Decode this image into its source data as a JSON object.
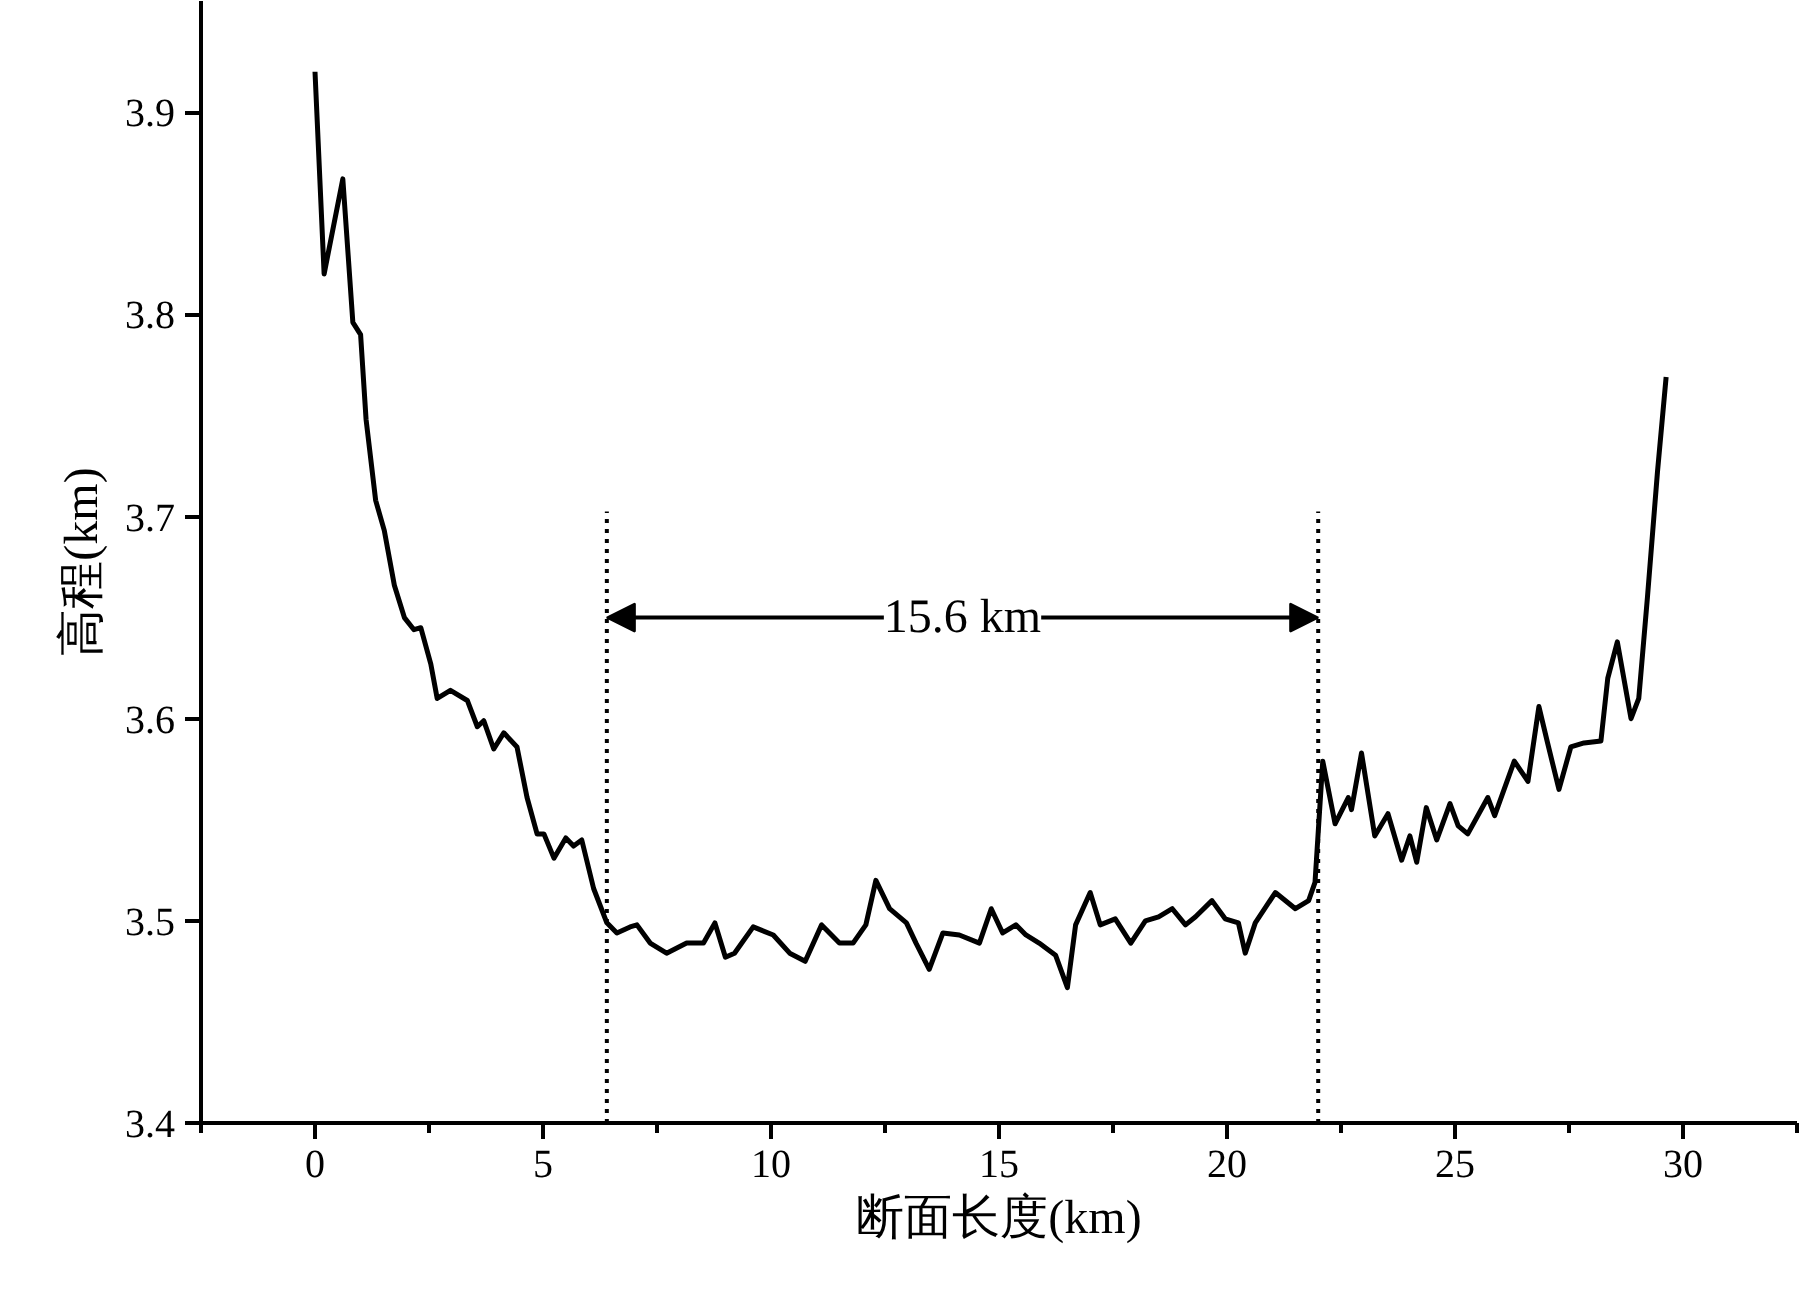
{
  "chart_data": {
    "type": "line",
    "xlabel": "断面长度(km)",
    "ylabel": "高程(km)",
    "x": [
      0,
      0.2,
      0.61,
      0.83,
      1.0,
      1.12,
      1.33,
      1.52,
      1.74,
      1.96,
      2.17,
      2.32,
      2.54,
      2.68,
      2.97,
      3.34,
      3.56,
      3.7,
      3.92,
      4.14,
      4.43,
      4.65,
      4.87,
      5.02,
      5.24,
      5.5,
      5.67,
      5.85,
      6.11,
      6.4,
      6.62,
      6.91,
      7.06,
      7.35,
      7.71,
      8.15,
      8.52,
      8.77,
      9.0,
      9.2,
      9.61,
      10.05,
      10.41,
      10.75,
      11.11,
      11.5,
      11.8,
      12.08,
      12.3,
      12.6,
      12.97,
      13.18,
      13.47,
      13.77,
      14.13,
      14.57,
      14.83,
      15.08,
      15.37,
      15.59,
      15.88,
      16.24,
      16.5,
      16.68,
      17.0,
      17.22,
      17.55,
      17.89,
      18.21,
      18.5,
      18.8,
      19.09,
      19.31,
      19.67,
      19.96,
      20.25,
      20.4,
      20.62,
      21.06,
      21.5,
      21.79,
      21.93,
      22.1,
      22.37,
      22.66,
      22.73,
      22.95,
      23.24,
      23.53,
      23.83,
      24.01,
      24.16,
      24.37,
      24.6,
      24.89,
      25.07,
      25.28,
      25.72,
      25.87,
      26.3,
      26.6,
      26.84,
      27.03,
      27.28,
      27.54,
      27.83,
      28.2,
      28.35,
      28.56,
      28.86,
      29.03,
      29.22,
      29.44,
      29.63
    ],
    "series": [
      {
        "color": "#000000",
        "values": [
          3.92,
          3.82,
          3.867,
          3.796,
          3.79,
          3.748,
          3.708,
          3.693,
          3.666,
          3.65,
          3.644,
          3.645,
          3.627,
          3.61,
          3.614,
          3.609,
          3.596,
          3.599,
          3.585,
          3.593,
          3.586,
          3.561,
          3.543,
          3.543,
          3.531,
          3.541,
          3.537,
          3.54,
          3.516,
          3.499,
          3.494,
          3.497,
          3.498,
          3.489,
          3.484,
          3.489,
          3.489,
          3.499,
          3.482,
          3.484,
          3.497,
          3.493,
          3.484,
          3.48,
          3.498,
          3.489,
          3.489,
          3.498,
          3.52,
          3.506,
          3.499,
          3.489,
          3.476,
          3.494,
          3.493,
          3.489,
          3.506,
          3.494,
          3.498,
          3.493,
          3.489,
          3.483,
          3.467,
          3.498,
          3.514,
          3.498,
          3.501,
          3.489,
          3.5,
          3.502,
          3.506,
          3.498,
          3.502,
          3.51,
          3.501,
          3.499,
          3.484,
          3.499,
          3.514,
          3.506,
          3.51,
          3.519,
          3.579,
          3.548,
          3.561,
          3.555,
          3.583,
          3.542,
          3.553,
          3.53,
          3.542,
          3.529,
          3.556,
          3.54,
          3.558,
          3.547,
          3.543,
          3.561,
          3.552,
          3.579,
          3.569,
          3.606,
          3.588,
          3.565,
          3.586,
          3.588,
          3.589,
          3.62,
          3.638,
          3.6,
          3.61,
          3.66,
          3.722,
          3.769
        ]
      }
    ],
    "xlim": [
      -2.5,
      32.5
    ],
    "xticks": [
      {
        "value": -2.5,
        "label": null
      },
      0,
      {
        "value": 2.5,
        "label": null
      },
      5,
      {
        "value": 7.5,
        "label": null
      },
      10,
      {
        "value": 12.5,
        "label": null
      },
      15,
      {
        "value": 17.5,
        "label": null
      },
      20,
      {
        "value": 22.5,
        "label": null
      },
      25,
      {
        "value": 27.5,
        "label": null
      },
      30,
      {
        "value": 32.5,
        "label": null
      }
    ],
    "ylim": [
      3.4,
      3.955
    ],
    "yticks": [
      3.4,
      3.5,
      3.6,
      3.7,
      3.8,
      3.9
    ],
    "ref_lines": [
      {
        "axis": "x",
        "value": 6.4,
        "label": null,
        "line_style": "dotted",
        "color": "#000000"
      },
      {
        "axis": "x",
        "value": 22.0,
        "label": null,
        "line_style": "dotted",
        "color": "#000000"
      }
    ],
    "annotations": [
      {
        "text": "15.6 km",
        "x": 22.0,
        "y": 3.65
      }
    ],
    "grid": false,
    "marker": "none",
    "line_style": "solid"
  }
}
